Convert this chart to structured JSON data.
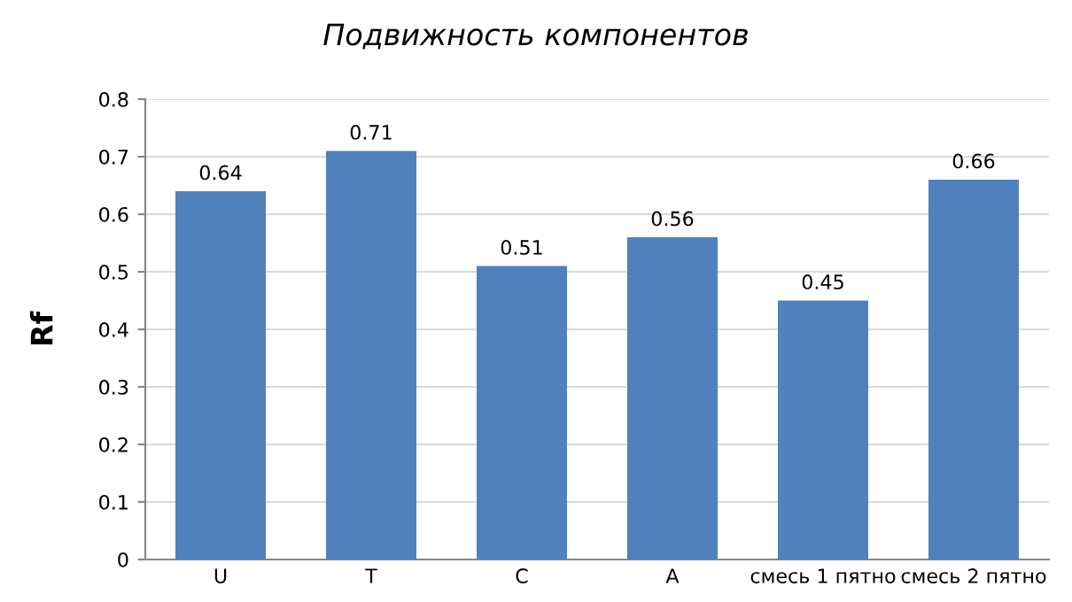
{
  "chart_data": {
    "type": "bar",
    "title": "Подвижность компонентов",
    "ylabel": "Rf",
    "categories": [
      "U",
      "T",
      "C",
      "A",
      "смесь 1 пятно",
      "смесь 2 пятно"
    ],
    "values": [
      0.64,
      0.71,
      0.51,
      0.56,
      0.45,
      0.66
    ],
    "color": "#4f81bd",
    "ylim": [
      0,
      0.8
    ],
    "yticks": [
      0,
      0.1,
      0.2,
      0.3,
      0.4,
      0.5,
      0.6,
      0.7,
      0.8
    ],
    "grid": "y",
    "data_labels": true
  }
}
